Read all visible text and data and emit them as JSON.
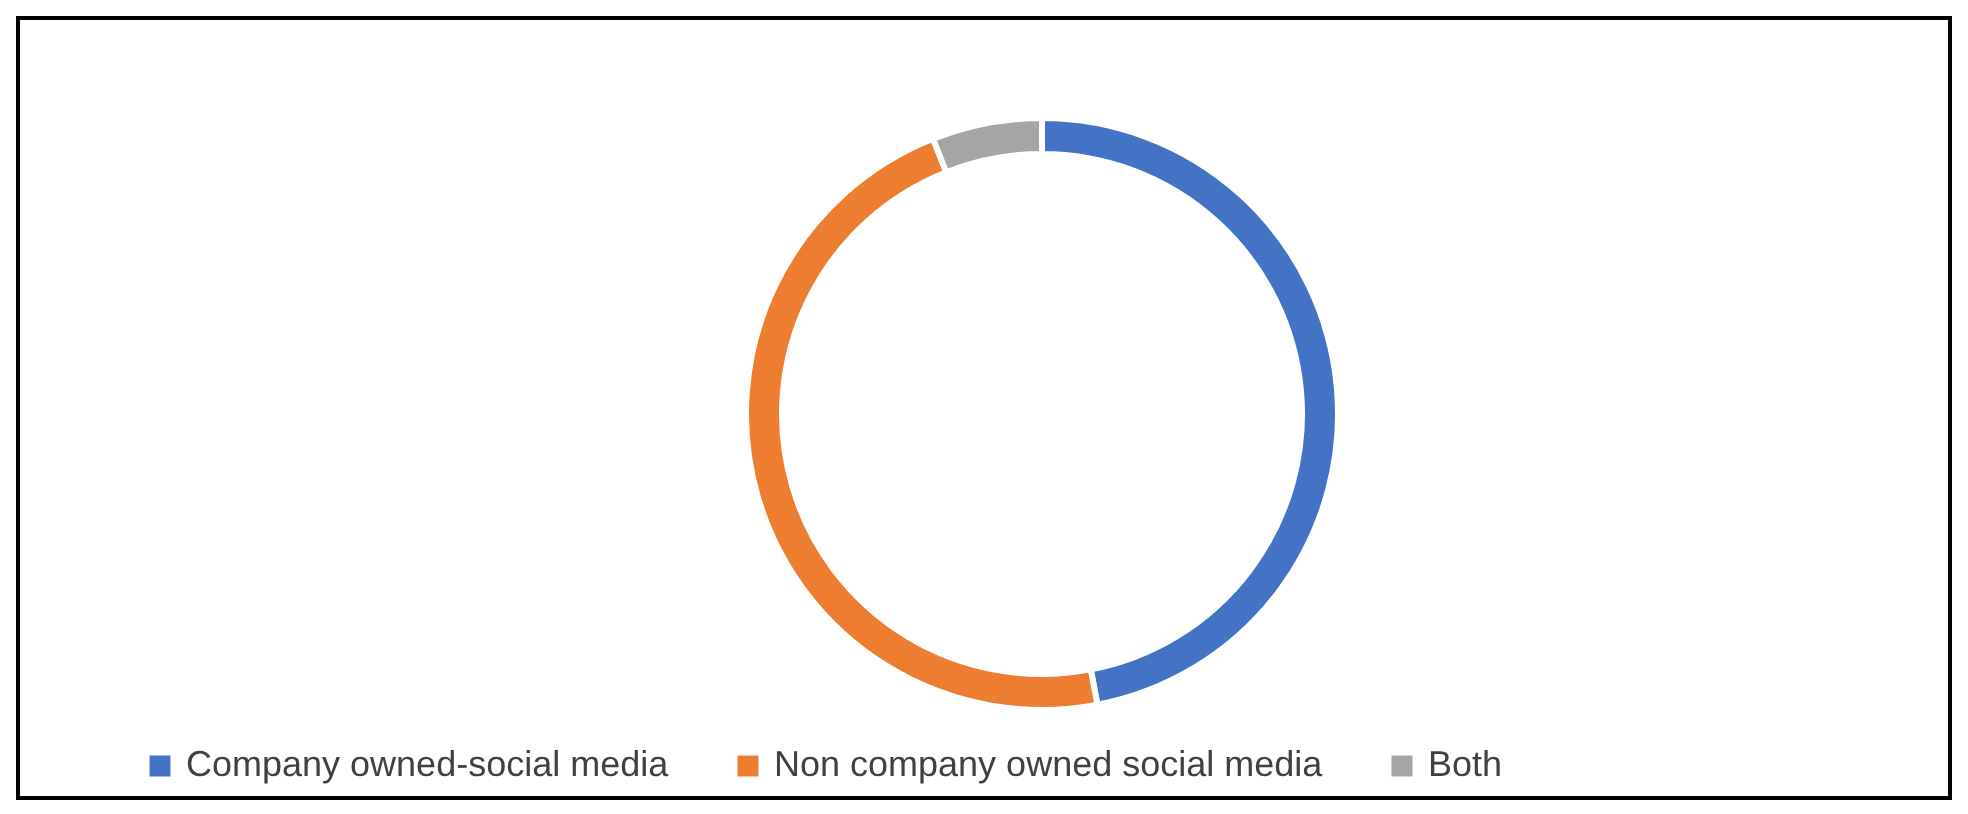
{
  "chart_data": {
    "type": "donut",
    "categories": [
      "Company owned-social media",
      "Non company owned social media",
      "Both"
    ],
    "values": [
      47,
      47,
      6
    ],
    "colors": [
      "#4472c4",
      "#ed7d31",
      "#a5a5a5"
    ],
    "legend": "bottom"
  }
}
